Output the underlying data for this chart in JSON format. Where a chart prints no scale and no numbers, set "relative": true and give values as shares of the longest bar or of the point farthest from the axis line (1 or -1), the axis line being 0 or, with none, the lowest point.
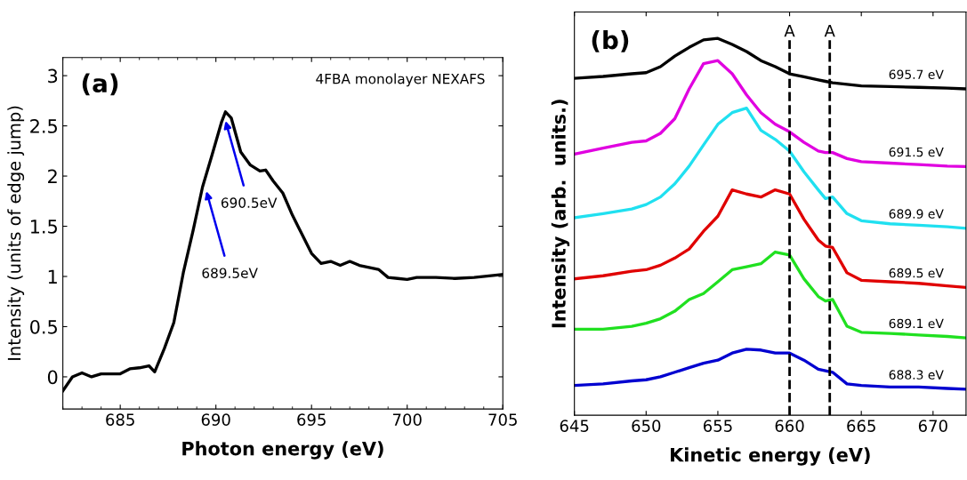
{
  "chart_data": [
    {
      "type": "line",
      "ylabel": "Intensity (units of edge jump)",
      "xlabel": "Photon energy (eV)",
      "annotations": [
        "(a)",
        "4FBA monolayer NEXAFS",
        {
          "text": "689.5eV",
          "x": 689.5,
          "y": 1.85
        },
        {
          "text": "690.5eV",
          "x": 690.5,
          "y": 2.55
        }
      ],
      "xlim": [
        682,
        705
      ],
      "xticks": [
        685,
        690,
        695,
        700,
        705
      ],
      "ylim": [
        -0.32,
        3.18
      ],
      "yticks": [
        0,
        0.5,
        1,
        1.5,
        2,
        2.5,
        3
      ],
      "series": [
        {
          "color": "#000000",
          "x": [
            682,
            682.5,
            683,
            683.5,
            684,
            685,
            685.5,
            686,
            686.5,
            686.8,
            687.3,
            687.8,
            688.3,
            688.8,
            689.3,
            689.8,
            690.3,
            690.5,
            690.8,
            691.3,
            691.8,
            692.3,
            692.6,
            693,
            693.5,
            694,
            694.5,
            695,
            695.5,
            696,
            696.5,
            697,
            697.5,
            698,
            698.5,
            699,
            699.5,
            700,
            700.5,
            701.5,
            702.5,
            703.5,
            704.5,
            705
          ],
          "values": [
            -0.14,
            0.0,
            0.04,
            0.0,
            0.03,
            0.03,
            0.08,
            0.09,
            0.11,
            0.05,
            0.28,
            0.54,
            1.04,
            1.45,
            1.89,
            2.21,
            2.54,
            2.64,
            2.58,
            2.24,
            2.11,
            2.05,
            2.06,
            1.95,
            1.83,
            1.61,
            1.42,
            1.23,
            1.13,
            1.15,
            1.11,
            1.15,
            1.11,
            1.09,
            1.07,
            0.99,
            0.98,
            0.97,
            0.99,
            0.99,
            0.98,
            0.99,
            1.01,
            1.02
          ]
        }
      ]
    },
    {
      "type": "line",
      "relative": true,
      "ylabel": "Intensity (arb.  units.)",
      "xlabel": "Kinetic energy (eV)",
      "tick_labels": "x",
      "annotations": [
        "(b)"
      ],
      "xlim": [
        645,
        672.3
      ],
      "xticks": [
        645,
        650,
        655,
        660,
        665,
        670
      ],
      "x": [
        645,
        647,
        649,
        650,
        651,
        652,
        653,
        654,
        655,
        656,
        657,
        658,
        659,
        660,
        661,
        662,
        662.5,
        663,
        664,
        665,
        667,
        669,
        671,
        672.3
      ],
      "ref_lines": [
        {
          "axis": "x",
          "value": 660,
          "label": "A",
          "color": "#000000",
          "line_style": "dashed"
        },
        {
          "axis": "x",
          "value": 662.8,
          "label": "A",
          "color": "#000000",
          "line_style": "dashed"
        }
      ],
      "series": [
        {
          "name": "695.7 eV",
          "color": "#000000",
          "values": [
            0.894,
            0.899,
            0.906,
            0.909,
            0.925,
            0.953,
            0.976,
            0.996,
            1.0,
            0.984,
            0.965,
            0.941,
            0.925,
            0.906,
            0.898,
            0.89,
            0.886,
            0.882,
            0.878,
            0.874,
            0.872,
            0.87,
            0.868,
            0.866
          ]
        },
        {
          "name": "691.5 eV",
          "color": "#e000e0",
          "values": [
            0.693,
            0.709,
            0.724,
            0.728,
            0.748,
            0.787,
            0.866,
            0.933,
            0.941,
            0.906,
            0.85,
            0.803,
            0.772,
            0.752,
            0.724,
            0.701,
            0.697,
            0.697,
            0.681,
            0.673,
            0.669,
            0.665,
            0.661,
            0.66
          ]
        },
        {
          "name": "689.9 eV",
          "color": "#20e0f0",
          "values": [
            0.524,
            0.535,
            0.547,
            0.559,
            0.579,
            0.614,
            0.661,
            0.717,
            0.772,
            0.803,
            0.815,
            0.756,
            0.732,
            0.701,
            0.646,
            0.598,
            0.575,
            0.579,
            0.535,
            0.516,
            0.508,
            0.504,
            0.5,
            0.496
          ]
        },
        {
          "name": "689.5 eV",
          "color": "#e00000",
          "values": [
            0.362,
            0.37,
            0.382,
            0.386,
            0.398,
            0.417,
            0.441,
            0.488,
            0.528,
            0.598,
            0.587,
            0.579,
            0.598,
            0.587,
            0.52,
            0.465,
            0.449,
            0.445,
            0.378,
            0.358,
            0.354,
            0.35,
            0.343,
            0.339
          ]
        },
        {
          "name": "689.1 eV",
          "color": "#20e020",
          "values": [
            0.228,
            0.228,
            0.236,
            0.244,
            0.256,
            0.276,
            0.307,
            0.323,
            0.354,
            0.386,
            0.394,
            0.402,
            0.433,
            0.425,
            0.362,
            0.315,
            0.303,
            0.307,
            0.236,
            0.22,
            0.217,
            0.213,
            0.209,
            0.205
          ]
        },
        {
          "name": "688.3 eV",
          "color": "#0000d0",
          "values": [
            0.079,
            0.083,
            0.091,
            0.094,
            0.102,
            0.114,
            0.126,
            0.138,
            0.146,
            0.165,
            0.175,
            0.173,
            0.165,
            0.165,
            0.146,
            0.122,
            0.118,
            0.114,
            0.083,
            0.079,
            0.075,
            0.075,
            0.071,
            0.069
          ]
        }
      ]
    }
  ]
}
